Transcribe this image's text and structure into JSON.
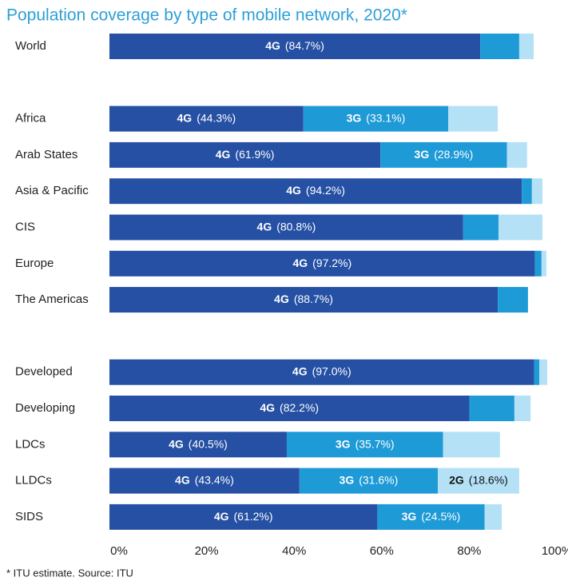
{
  "chart_data": {
    "type": "bar",
    "orientation": "horizontal",
    "stacked": true,
    "title": "Population coverage by type of mobile network, 2020*",
    "footnote": "* ITU estimate. Source: ITU",
    "categories": [
      "World",
      "Africa",
      "Arab States",
      "Asia & Pacific",
      "CIS",
      "Europe",
      "The Americas",
      "Developed",
      "Developing",
      "LDCs",
      "LLDCs",
      "SIDS"
    ],
    "series": [
      {
        "name": "4G",
        "color": "#2550a3",
        "values": [
          84.7,
          44.3,
          61.9,
          94.2,
          80.8,
          97.2,
          88.7,
          97.0,
          82.2,
          40.5,
          43.4,
          61.2
        ],
        "value_labels": [
          "(84.7%)",
          "(44.3%)",
          "(61.9%)",
          "(94.2%)",
          "(80.8%)",
          "(97.2%)",
          "(88.7%)",
          "(97.0%)",
          "(82.2%)",
          "(40.5%)",
          "(43.4%)",
          "(61.2%)"
        ]
      },
      {
        "name": "3G",
        "color": "#1e9ad6",
        "values": [
          8.9,
          33.1,
          28.9,
          2.3,
          8.1,
          1.5,
          6.9,
          1.2,
          10.3,
          35.7,
          31.6,
          24.5
        ],
        "value_labels": [
          null,
          "(33.1%)",
          "(28.9%)",
          null,
          null,
          null,
          null,
          null,
          null,
          "(35.7%)",
          "(31.6%)",
          "(24.5%)"
        ]
      },
      {
        "name": "2G",
        "color": "#b5e1f6",
        "values": [
          3.3,
          11.3,
          4.6,
          2.4,
          10.0,
          1.1,
          0,
          1.8,
          3.7,
          13.0,
          18.6,
          3.9
        ],
        "value_labels": [
          null,
          null,
          null,
          null,
          null,
          null,
          null,
          null,
          null,
          null,
          "(18.6%)",
          null
        ]
      }
    ],
    "xlim": [
      0,
      100
    ],
    "xticks": [
      {
        "value": 0,
        "label": "0%"
      },
      {
        "value": 20,
        "label": "20%"
      },
      {
        "value": 40,
        "label": "40%"
      },
      {
        "value": 60,
        "label": "60%"
      },
      {
        "value": 80,
        "label": "80%"
      },
      {
        "value": 100,
        "label": "100%"
      }
    ]
  }
}
